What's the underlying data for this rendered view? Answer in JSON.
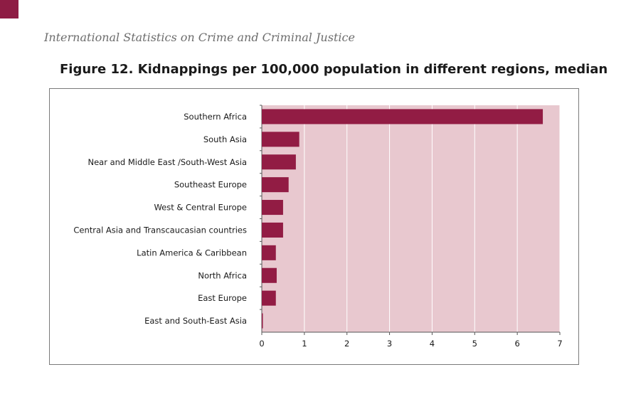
{
  "header": {
    "running_title": "International Statistics on Crime and Criminal Justice",
    "accent_color": "#8e1c44"
  },
  "figure": {
    "title": "Figure 12. Kidnappings per 100,000 population in different regions, median"
  },
  "chart_data": {
    "type": "bar",
    "orientation": "horizontal",
    "categories": [
      "Southern Africa",
      "South Asia",
      "Near and Middle East /South-West Asia",
      "Southeast Europe",
      "West & Central Europe",
      "Central Asia and Transcaucasian countries",
      "Latin America & Caribbean",
      "North Africa",
      "East Europe",
      "East and South-East Asia"
    ],
    "values": [
      6.6,
      0.88,
      0.8,
      0.63,
      0.5,
      0.5,
      0.33,
      0.35,
      0.33,
      0.02
    ],
    "xlim": [
      0,
      7
    ],
    "xticks": [
      "0",
      "1",
      "2",
      "3",
      "4",
      "5",
      "6",
      "7"
    ],
    "grid": "vertical",
    "colors": {
      "bar": "#921c44",
      "plot_background": "#e8c8cf",
      "grid": "#ffffff"
    }
  }
}
